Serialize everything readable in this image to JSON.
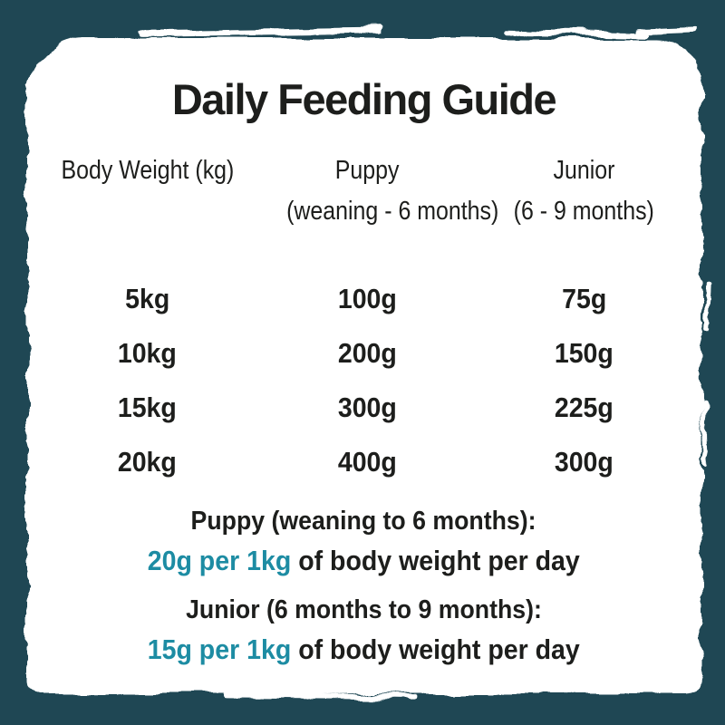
{
  "guide": {
    "title": "Daily Feeding Guide",
    "columns": [
      {
        "label": "Body Weight (kg)",
        "sublabel": ""
      },
      {
        "label": "Puppy",
        "sublabel": "(weaning - 6 months)"
      },
      {
        "label": "Junior",
        "sublabel": "(6 - 9 months)"
      }
    ],
    "rows": [
      {
        "weight": "5kg",
        "puppy": "100g",
        "junior": "75g"
      },
      {
        "weight": "10kg",
        "puppy": "200g",
        "junior": "150g"
      },
      {
        "weight": "15kg",
        "puppy": "300g",
        "junior": "225g"
      },
      {
        "weight": "20kg",
        "puppy": "400g",
        "junior": "300g"
      }
    ],
    "notes": [
      {
        "heading": "Puppy (weaning to 6 months):",
        "highlight": "20g per 1kg",
        "rest": " of body weight per day"
      },
      {
        "heading": "Junior (6 months to 9 months):",
        "highlight": "15g per 1kg",
        "rest": " of body weight per day"
      }
    ]
  },
  "colors": {
    "background": "#1f4754",
    "paper": "#ffffff",
    "text": "#1d1e1c",
    "accent": "#1d8ca3"
  },
  "chart_data": {
    "type": "table",
    "title": "Daily Feeding Guide",
    "columns": [
      "Body Weight (kg)",
      "Puppy (weaning - 6 months)",
      "Junior (6 - 9 months)"
    ],
    "rows": [
      [
        "5kg",
        "100g",
        "75g"
      ],
      [
        "10kg",
        "200g",
        "150g"
      ],
      [
        "15kg",
        "300g",
        "225g"
      ],
      [
        "20kg",
        "400g",
        "300g"
      ]
    ],
    "footnotes": [
      "Puppy (weaning to 6 months): 20g per 1kg of body weight per day",
      "Junior (6 months to 9 months): 15g per 1kg of body weight per day"
    ]
  }
}
